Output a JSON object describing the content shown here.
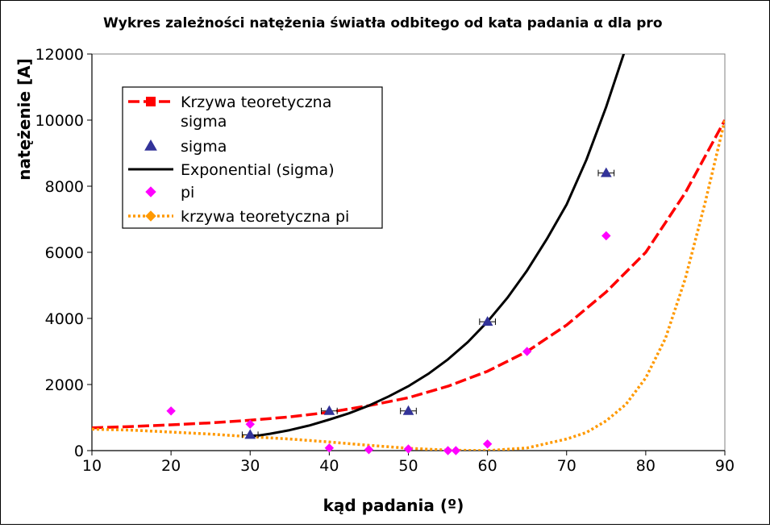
{
  "chart_data": {
    "type": "scatter",
    "title": "Wykres zależności natężenia światła odbitego od kata padania α dla pro",
    "xlabel": "kąd padania (º)",
    "ylabel": "natężenie [A]",
    "xlim": [
      10,
      90
    ],
    "ylim": [
      0,
      12000
    ],
    "x_ticks": [
      "10",
      "20",
      "30",
      "40",
      "50",
      "60",
      "70",
      "80",
      "90"
    ],
    "y_ticks": [
      "0",
      "2000",
      "4000",
      "6000",
      "8000",
      "10000",
      "12000"
    ],
    "grid": false,
    "legend_position": "top-left",
    "colors": {
      "theory_sigma": "#ff0000",
      "sigma": "#333399",
      "exp_sigma": "#000000",
      "pi": "#ff00ff",
      "theory_pi": "#ff9900"
    },
    "series": [
      {
        "name": "Krzywa teoretyczna sigma",
        "kind": "line",
        "style": "dashed",
        "x": [
          10,
          15,
          20,
          25,
          30,
          35,
          40,
          45,
          50,
          55,
          60,
          65,
          70,
          75,
          80,
          85,
          90
        ],
        "y": [
          690,
          730,
          780,
          840,
          920,
          1020,
          1160,
          1360,
          1600,
          1950,
          2400,
          3000,
          3800,
          4800,
          6000,
          7800,
          10000
        ]
      },
      {
        "name": "sigma",
        "kind": "points",
        "marker": "triangle",
        "x": [
          30,
          40,
          50,
          60,
          75
        ],
        "y": [
          480,
          1200,
          1200,
          3900,
          8400
        ],
        "xerr": [
          1,
          1,
          1,
          1,
          1
        ]
      },
      {
        "name": "Exponential (sigma)",
        "kind": "line",
        "style": "solid",
        "x": [
          30,
          32.5,
          35,
          37.5,
          40,
          42.5,
          45,
          47.5,
          50,
          52.5,
          55,
          57.5,
          60,
          62.5,
          65,
          67.5,
          70,
          72.5,
          75,
          77.5
        ],
        "y": [
          420,
          510,
          620,
          760,
          940,
          1130,
          1360,
          1640,
          1950,
          2320,
          2760,
          3280,
          3900,
          4620,
          5450,
          6400,
          7450,
          8800,
          10400,
          12200
        ]
      },
      {
        "name": "pi",
        "kind": "points",
        "marker": "diamond",
        "x": [
          20,
          30,
          40,
          45,
          50,
          55,
          56,
          60,
          65,
          75
        ],
        "y": [
          1200,
          800,
          80,
          30,
          50,
          0,
          0,
          200,
          3000,
          6500
        ]
      },
      {
        "name": "krzywa teoretyczna pi",
        "kind": "line",
        "style": "dotted",
        "x": [
          10,
          15,
          20,
          25,
          30,
          35,
          40,
          45,
          50,
          55,
          60,
          65,
          70,
          72.5,
          75,
          77.5,
          80,
          82.5,
          85,
          87.5,
          90
        ],
        "y": [
          650,
          620,
          560,
          500,
          420,
          350,
          260,
          160,
          70,
          15,
          0,
          80,
          350,
          550,
          900,
          1400,
          2200,
          3400,
          5200,
          7500,
          10000
        ]
      }
    ]
  }
}
